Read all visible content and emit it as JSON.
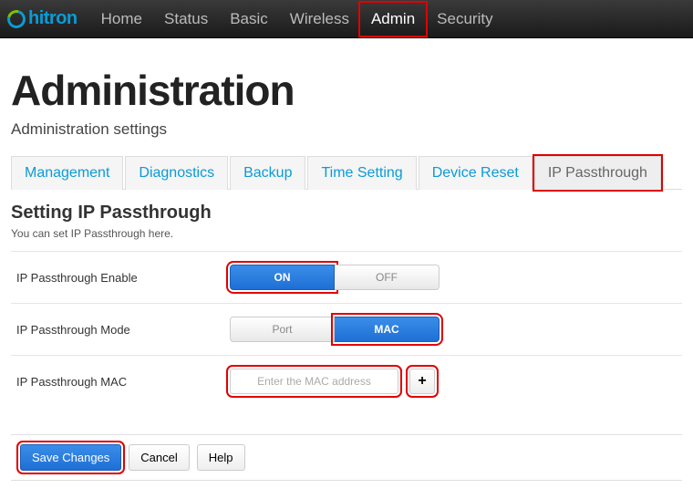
{
  "brand": {
    "name": "hitron",
    "logo_color": "#0a9bd6",
    "accent_color": "#7cc400"
  },
  "topnav": {
    "items": [
      {
        "label": "Home"
      },
      {
        "label": "Status"
      },
      {
        "label": "Basic"
      },
      {
        "label": "Wireless"
      },
      {
        "label": "Admin",
        "active": true,
        "highlighted": true
      },
      {
        "label": "Security"
      }
    ]
  },
  "page": {
    "title": "Administration",
    "subtitle": "Administration settings"
  },
  "tabs": {
    "items": [
      {
        "label": "Management"
      },
      {
        "label": "Diagnostics"
      },
      {
        "label": "Backup"
      },
      {
        "label": "Time Setting"
      },
      {
        "label": "Device Reset"
      },
      {
        "label": "IP Passthrough",
        "active": true,
        "highlighted": true
      }
    ]
  },
  "section": {
    "heading": "Setting IP Passthrough",
    "description": "You can set IP Passthrough here."
  },
  "form": {
    "enable": {
      "label": "IP Passthrough Enable",
      "on_label": "ON",
      "off_label": "OFF",
      "value": "ON",
      "highlighted": true
    },
    "mode": {
      "label": "IP Passthrough Mode",
      "port_label": "Port",
      "mac_label": "MAC",
      "value": "MAC",
      "highlighted": true
    },
    "mac": {
      "label": "IP Passthrough MAC",
      "placeholder": "Enter the MAC address",
      "value": "",
      "add_symbol": "+",
      "highlighted": true
    }
  },
  "buttons": {
    "save": {
      "label": "Save Changes",
      "highlighted": true
    },
    "cancel": {
      "label": "Cancel"
    },
    "help": {
      "label": "Help"
    }
  },
  "colors": {
    "primary_blue": "#1e6fd6",
    "link_blue": "#0a9bd6",
    "highlight_red": "#e00000",
    "navbar_bg": "#1a1a1a"
  }
}
